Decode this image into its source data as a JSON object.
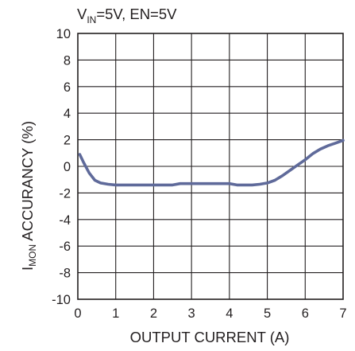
{
  "chart_data": {
    "type": "line",
    "subtitle": {
      "v": "V",
      "v_sub": "IN",
      "rest": "=5V, EN=5V"
    },
    "xlabel": "OUTPUT CURRENT (A)",
    "ylabel": {
      "main": "I",
      "sub": "MON",
      "rest": " ACCURANCY (%)"
    },
    "xlim": [
      0,
      7
    ],
    "ylim": [
      -10,
      10
    ],
    "x_ticks": [
      "0",
      "1",
      "2",
      "3",
      "4",
      "5",
      "6",
      "7"
    ],
    "y_ticks": [
      "10",
      "8",
      "6",
      "4",
      "2",
      "0",
      "-2",
      "-4",
      "-6",
      "-8",
      "-10"
    ],
    "x_tick_values": [
      0,
      1,
      2,
      3,
      4,
      5,
      6,
      7
    ],
    "y_tick_values": [
      10,
      8,
      6,
      4,
      2,
      0,
      -2,
      -4,
      -6,
      -8,
      -10
    ],
    "grid": true,
    "series": [
      {
        "color": "#5f6a9a",
        "x": [
          0.05,
          0.15,
          0.3,
          0.45,
          0.6,
          0.8,
          1.0,
          1.5,
          2.0,
          2.5,
          2.7,
          3.0,
          3.5,
          4.0,
          4.2,
          4.6,
          4.8,
          5.0,
          5.2,
          5.4,
          5.6,
          5.8,
          6.0,
          6.2,
          6.4,
          6.6,
          6.8,
          7.0
        ],
        "y": [
          0.9,
          0.3,
          -0.5,
          -1.05,
          -1.25,
          -1.35,
          -1.4,
          -1.4,
          -1.4,
          -1.4,
          -1.3,
          -1.3,
          -1.3,
          -1.3,
          -1.4,
          -1.4,
          -1.35,
          -1.25,
          -1.05,
          -0.7,
          -0.3,
          0.1,
          0.5,
          0.95,
          1.3,
          1.55,
          1.75,
          1.95
        ]
      }
    ]
  }
}
